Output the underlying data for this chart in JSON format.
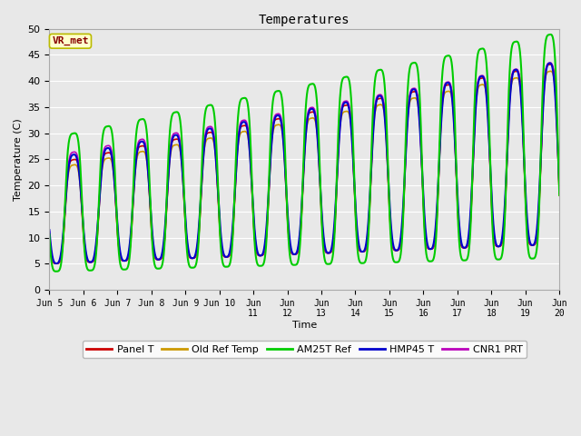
{
  "title": "Temperatures",
  "xlabel": "Time",
  "ylabel": "Temperature (C)",
  "annotation_text": "VR_met",
  "annotation_bg": "#ffffcc",
  "annotation_border": "#bbbb00",
  "annotation_text_color": "#880000",
  "ylim": [
    0,
    50
  ],
  "yticks": [
    0,
    5,
    10,
    15,
    20,
    25,
    30,
    35,
    40,
    45,
    50
  ],
  "bg_color": "#e8e8e8",
  "plot_bg": "#e8e8e8",
  "grid_color": "#ffffff",
  "line_colors": {
    "Panel T": "#cc0000",
    "Old Ref Temp": "#cc9900",
    "AM25T Ref": "#00cc00",
    "HMP45 T": "#0000cc",
    "CNR1 PRT": "#bb00bb"
  },
  "line_widths": {
    "Panel T": 1.2,
    "Old Ref Temp": 1.2,
    "AM25T Ref": 1.5,
    "HMP45 T": 1.5,
    "CNR1 PRT": 1.2
  },
  "num_days": 15,
  "points_per_day": 288,
  "peak_hour": 14,
  "trough_hour": 5
}
